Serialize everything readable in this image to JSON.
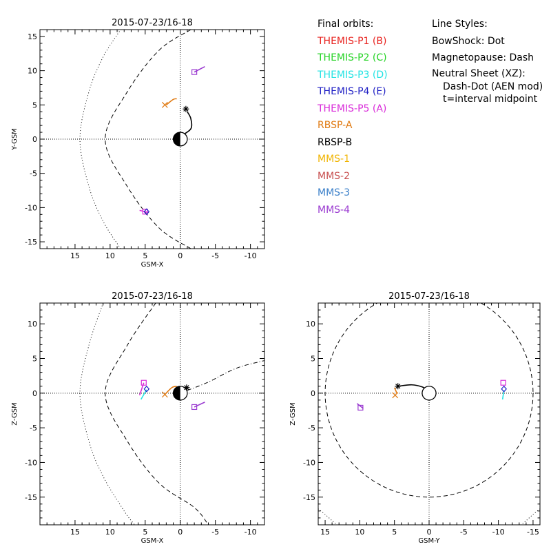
{
  "legend": {
    "orbits_title": "Final orbits:",
    "entries": [
      {
        "label": "THEMIS-P1 (B)",
        "color": "#e8231f"
      },
      {
        "label": "THEMIS-P2 (C)",
        "color": "#24d324"
      },
      {
        "label": "THEMIS-P3 (D)",
        "color": "#22e3e3"
      },
      {
        "label": "THEMIS-P4 (E)",
        "color": "#1f1fc4"
      },
      {
        "label": "THEMIS-P5 (A)",
        "color": "#d92ad9"
      },
      {
        "label": "RBSP-A",
        "color": "#e07a12"
      },
      {
        "label": "RBSP-B",
        "color": "#000000"
      },
      {
        "label": "MMS-1",
        "color": "#f0b400"
      },
      {
        "label": "MMS-2",
        "color": "#c85050"
      },
      {
        "label": "MMS-3",
        "color": "#3a7fc9"
      },
      {
        "label": "MMS-4",
        "color": "#9a3ad0"
      }
    ],
    "styles_title": "Line Styles:",
    "bowshock": "BowShock: Dot",
    "magnetopause": "Magnetopause: Dash",
    "neutral_sheet": "Neutral Sheet (XZ):",
    "neutral_sheet_detail": "Dash-Dot (AEN mod)",
    "midpoint_note": "t=interval midpoint"
  },
  "chart_data": [
    {
      "type": "line",
      "title": "2015-07-23/16-18",
      "xlabel": "GSM-X",
      "ylabel": "Y-GSM",
      "xlim": [
        20,
        -12
      ],
      "ylim": [
        16,
        -16
      ],
      "xticks": [
        15,
        10,
        5,
        0,
        -5,
        -10
      ],
      "yticks": [
        -15,
        -10,
        -5,
        0,
        5,
        10,
        15
      ],
      "series": [
        {
          "style": "bowshock",
          "points": [
            [
              8.5,
              -16
            ],
            [
              11,
              -12
            ],
            [
              13,
              -7
            ],
            [
              14.3,
              0
            ],
            [
              13,
              7
            ],
            [
              11,
              12
            ],
            [
              8.5,
              16
            ]
          ]
        },
        {
          "style": "magnetopause",
          "points": [
            [
              -1.5,
              -16
            ],
            [
              3,
              -13
            ],
            [
              7.5,
              -7
            ],
            [
              10.7,
              0
            ],
            [
              7.5,
              7
            ],
            [
              3,
              13
            ],
            [
              -1.5,
              16
            ]
          ]
        },
        {
          "style": "trajectory",
          "color": "#000000",
          "points": [
            [
              0,
              0.4
            ],
            [
              -1.5,
              1.5
            ],
            [
              -1.5,
              3
            ],
            [
              -1,
              4
            ]
          ]
        },
        {
          "style": "trajectory",
          "color": "#e07a12",
          "points": [
            [
              2,
              5
            ],
            [
              1,
              5.8
            ],
            [
              0.5,
              5.9
            ]
          ]
        },
        {
          "style": "trajectory",
          "color": "#d92ad9",
          "points": [
            [
              5.8,
              -10.4
            ],
            [
              4.7,
              -10.7
            ]
          ]
        },
        {
          "style": "trajectory",
          "color": "#9a3ad0",
          "points": [
            [
              -2,
              9.8
            ],
            [
              -3.5,
              10.6
            ]
          ]
        }
      ],
      "markers": [
        {
          "shape": "asterisk",
          "color": "#000000",
          "x": -0.8,
          "y": 4.4
        },
        {
          "shape": "x",
          "color": "#e07a12",
          "x": 2.2,
          "y": 5
        },
        {
          "shape": "square",
          "color": "#d92ad9",
          "x": 5,
          "y": -10.6
        },
        {
          "shape": "diamond",
          "color": "#1f1fc4",
          "x": 4.8,
          "y": -10.6
        },
        {
          "shape": "square",
          "color": "#9a3ad0",
          "x": -2,
          "y": 9.8
        }
      ]
    },
    {
      "type": "line",
      "title": "2015-07-23/16-18",
      "xlabel": "GSM-X",
      "ylabel": "Z-GSM",
      "xlim": [
        20,
        -12
      ],
      "ylim": [
        13,
        -19
      ],
      "xticks": [
        15,
        10,
        5,
        0,
        -5,
        -10
      ],
      "yticks": [
        10,
        5,
        0,
        -5,
        -10,
        -15
      ],
      "series": [
        {
          "style": "bowshock",
          "points": [
            [
              11,
              13
            ],
            [
              13,
              7
            ],
            [
              14.3,
              0
            ],
            [
              13,
              -7
            ],
            [
              11,
              -12
            ],
            [
              8,
              -17
            ],
            [
              6.5,
              -19
            ]
          ]
        },
        {
          "style": "magnetopause",
          "points": [
            [
              3.5,
              13
            ],
            [
              7.5,
              7
            ],
            [
              10.7,
              0
            ],
            [
              7.5,
              -7
            ],
            [
              3,
              -13
            ],
            [
              -2,
              -16.5
            ],
            [
              -4,
              -19
            ]
          ]
        },
        {
          "style": "neutral_sheet",
          "points": [
            [
              -1,
              0.4
            ],
            [
              -4,
              1.6
            ],
            [
              -8,
              3.6
            ],
            [
              -12,
              4.7
            ]
          ]
        },
        {
          "style": "trajectory",
          "color": "#000000",
          "points": [
            [
              0,
              0.2
            ],
            [
              -1,
              0.6
            ]
          ]
        },
        {
          "style": "trajectory",
          "color": "#e07a12",
          "points": [
            [
              2.2,
              -0.2
            ],
            [
              1.2,
              0.8
            ],
            [
              0.5,
              1
            ]
          ]
        },
        {
          "style": "trajectory",
          "color": "#22e3e3",
          "points": [
            [
              4.8,
              0.5
            ],
            [
              5.6,
              -0.9
            ]
          ]
        },
        {
          "style": "trajectory",
          "color": "#d92ad9",
          "points": [
            [
              5.2,
              1.5
            ],
            [
              5.8,
              -0.3
            ]
          ]
        },
        {
          "style": "trajectory",
          "color": "#9a3ad0",
          "points": [
            [
              -2,
              -2
            ],
            [
              -3.5,
              -1.3
            ]
          ]
        }
      ],
      "markers": [
        {
          "shape": "asterisk",
          "color": "#000000",
          "x": -0.9,
          "y": 0.8
        },
        {
          "shape": "x",
          "color": "#e07a12",
          "x": 2.2,
          "y": -0.2
        },
        {
          "shape": "square",
          "color": "#d92ad9",
          "x": 5.2,
          "y": 1.5
        },
        {
          "shape": "diamond",
          "color": "#1f1fc4",
          "x": 4.8,
          "y": 0.6
        },
        {
          "shape": "square",
          "color": "#9a3ad0",
          "x": -2,
          "y": -2
        }
      ]
    },
    {
      "type": "line",
      "title": "2015-07-23/16-18",
      "xlabel": "GSM-Y",
      "ylabel": "Z-GSM",
      "xlim": [
        16,
        -16
      ],
      "ylim": [
        13,
        -19
      ],
      "xticks": [
        15,
        10,
        5,
        0,
        -5,
        -10,
        -15
      ],
      "yticks": [
        10,
        5,
        0,
        -5,
        -10,
        -15
      ],
      "series": [
        {
          "style": "magnetopause_circle",
          "center": [
            0,
            0
          ],
          "radius": 15
        },
        {
          "style": "bowshock",
          "points": [
            [
              16,
              -16.7
            ],
            [
              15,
              -17.5
            ],
            [
              14,
              -18.4
            ],
            [
              13.3,
              -19
            ]
          ]
        },
        {
          "style": "bowshock",
          "points": [
            [
              -16,
              -16.7
            ],
            [
              -15,
              -17.5
            ],
            [
              -14,
              -18.4
            ],
            [
              -13.3,
              -19
            ]
          ]
        },
        {
          "style": "trajectory",
          "color": "#000000",
          "points": [
            [
              4.5,
              1
            ],
            [
              2.5,
              1.2
            ],
            [
              1,
              0.9
            ],
            [
              0.2,
              0.4
            ]
          ]
        },
        {
          "style": "trajectory",
          "color": "#e07a12",
          "points": [
            [
              5,
              0.8
            ],
            [
              4.6,
              -0.1
            ]
          ]
        },
        {
          "style": "trajectory",
          "color": "#22e3e3",
          "points": [
            [
              -10.8,
              0.4
            ],
            [
              -10.6,
              -0.9
            ]
          ]
        },
        {
          "style": "trajectory",
          "color": "#9a3ad0",
          "points": [
            [
              10.4,
              -1.5
            ],
            [
              9.5,
              -2.2
            ]
          ]
        }
      ],
      "markers": [
        {
          "shape": "asterisk",
          "color": "#000000",
          "x": 4.5,
          "y": 1
        },
        {
          "shape": "x",
          "color": "#e07a12",
          "x": 4.9,
          "y": -0.3
        },
        {
          "shape": "square",
          "color": "#d92ad9",
          "x": -10.7,
          "y": 1.5
        },
        {
          "shape": "diamond",
          "color": "#1f1fc4",
          "x": -10.8,
          "y": 0.6
        },
        {
          "shape": "square",
          "color": "#9a3ad0",
          "x": 9.9,
          "y": -2.1
        }
      ]
    }
  ]
}
